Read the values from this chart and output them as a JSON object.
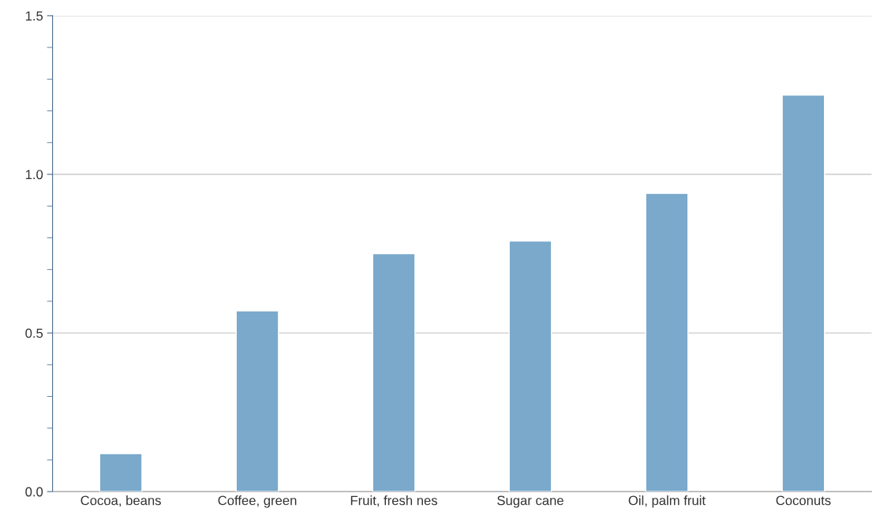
{
  "chart_data": {
    "type": "bar",
    "categories": [
      "Cocoa, beans",
      "Coffee, green",
      "Fruit, fresh nes",
      "Sugar cane",
      "Oil, palm fruit",
      "Coconuts"
    ],
    "values": [
      0.12,
      0.57,
      0.75,
      0.79,
      0.94,
      1.25
    ],
    "color": "#7aa9cb",
    "ylim": [
      0,
      1.5
    ],
    "yticks": [
      {
        "value": 0,
        "label": "0.0"
      },
      {
        "value": 0.1,
        "label": null
      },
      {
        "value": 0.2,
        "label": null
      },
      {
        "value": 0.3,
        "label": null
      },
      {
        "value": 0.4,
        "label": null
      },
      {
        "value": 0.5,
        "label": "0.5"
      },
      {
        "value": 0.6,
        "label": null
      },
      {
        "value": 0.7,
        "label": null
      },
      {
        "value": 0.8,
        "label": null
      },
      {
        "value": 0.9,
        "label": null
      },
      {
        "value": 1.0,
        "label": "1.0"
      },
      {
        "value": 1.1,
        "label": null
      },
      {
        "value": 1.2,
        "label": null
      },
      {
        "value": 1.3,
        "label": null
      },
      {
        "value": 1.4,
        "label": null
      },
      {
        "value": 1.5,
        "label": "1.5"
      }
    ],
    "grid": "y",
    "legend": false
  }
}
